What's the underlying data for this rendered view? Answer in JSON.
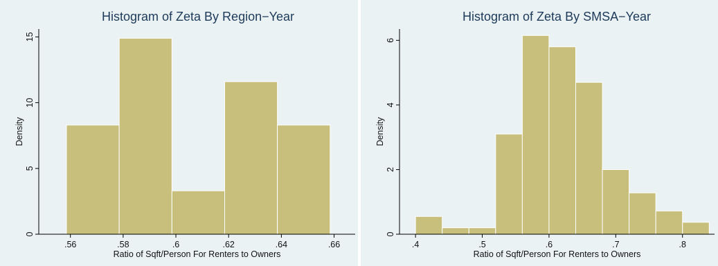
{
  "chart_data": [
    {
      "type": "bar",
      "title": "Histogram of Zeta By Region−Year",
      "xlabel": "Ratio of Sqft/Person For Renters to Owners",
      "ylabel": "Density",
      "xlim": [
        0.548,
        0.668
      ],
      "ylim": [
        0,
        15.6
      ],
      "xticks": [
        0.56,
        0.58,
        0.6,
        0.62,
        0.64,
        0.66
      ],
      "xtick_labels": [
        ".56",
        ".58",
        ".6",
        ".62",
        ".64",
        ".66"
      ],
      "yticks": [
        0,
        5,
        10,
        15
      ],
      "ytick_labels": [
        "0",
        "5",
        "10",
        "15"
      ],
      "bins": [
        {
          "start": 0.5585,
          "end": 0.5785,
          "value": 8.3
        },
        {
          "start": 0.5785,
          "end": 0.5985,
          "value": 14.9
        },
        {
          "start": 0.5985,
          "end": 0.6185,
          "value": 3.3
        },
        {
          "start": 0.6185,
          "end": 0.6385,
          "value": 11.6
        },
        {
          "start": 0.6385,
          "end": 0.6585,
          "value": 8.3
        }
      ],
      "grid": false,
      "legend": "none",
      "bar_color": "#c8bf7d",
      "title_color": "#1e3a5a"
    },
    {
      "type": "bar",
      "title": "Histogram of Zeta By SMSA−Year",
      "xlabel": "Ratio of Sqft/Person For Renters to Owners",
      "ylabel": "Density",
      "xlim": [
        0.376,
        0.848
      ],
      "ylim": [
        0,
        6.35
      ],
      "xticks": [
        0.4,
        0.5,
        0.6,
        0.7,
        0.8
      ],
      "xtick_labels": [
        ".4",
        ".5",
        ".6",
        ".7",
        ".8"
      ],
      "yticks": [
        0,
        2,
        4,
        6
      ],
      "ytick_labels": [
        "0",
        "2",
        "4",
        "6"
      ],
      "bins": [
        {
          "start": 0.4,
          "end": 0.44,
          "value": 0.55
        },
        {
          "start": 0.44,
          "end": 0.48,
          "value": 0.2
        },
        {
          "start": 0.48,
          "end": 0.52,
          "value": 0.2
        },
        {
          "start": 0.52,
          "end": 0.56,
          "value": 3.1
        },
        {
          "start": 0.56,
          "end": 0.6,
          "value": 6.15
        },
        {
          "start": 0.6,
          "end": 0.64,
          "value": 5.8
        },
        {
          "start": 0.64,
          "end": 0.68,
          "value": 4.7
        },
        {
          "start": 0.68,
          "end": 0.72,
          "value": 2.0
        },
        {
          "start": 0.72,
          "end": 0.76,
          "value": 1.28
        },
        {
          "start": 0.76,
          "end": 0.8,
          "value": 0.72
        },
        {
          "start": 0.8,
          "end": 0.84,
          "value": 0.37
        }
      ],
      "grid": false,
      "legend": "none",
      "bar_color": "#c8bf7d",
      "title_color": "#1e3a5a"
    }
  ]
}
